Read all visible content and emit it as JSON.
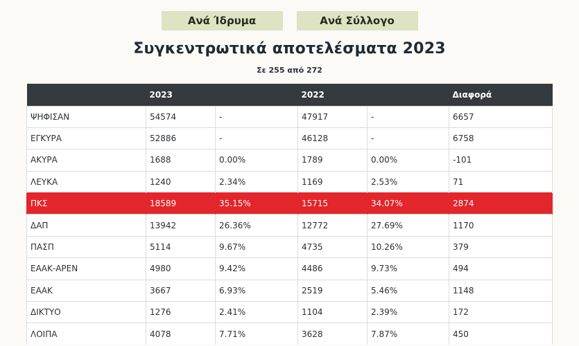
{
  "tabs": [
    {
      "label": "Ανά Ίδρυμα"
    },
    {
      "label": "Ανά Σύλλογο"
    }
  ],
  "title": "Συγκεντρωτικά αποτελέσματα 2023",
  "subtitle": "Σε 255 από 272",
  "table": {
    "headers": [
      "",
      "2023",
      "",
      "2022",
      "",
      "Διαφορά"
    ],
    "rows": [
      {
        "label": "ΨΗΦΙΣΑΝ",
        "v2023": "54574",
        "p2023": "-",
        "v2022": "47917",
        "p2022": "-",
        "diff": "6657"
      },
      {
        "label": "ΕΓΚΥΡΑ",
        "v2023": "52886",
        "p2023": "-",
        "v2022": "46128",
        "p2022": "-",
        "diff": "6758"
      },
      {
        "label": "ΑΚΥΡΑ",
        "v2023": "1688",
        "p2023": "0.00%",
        "v2022": "1789",
        "p2022": "0.00%",
        "diff": "-101"
      },
      {
        "label": "ΛΕΥΚΑ",
        "v2023": "1240",
        "p2023": "2.34%",
        "v2022": "1169",
        "p2022": "2.53%",
        "diff": "71"
      },
      {
        "label": "ΠΚΣ",
        "v2023": "18589",
        "p2023": "35.15%",
        "v2022": "15715",
        "p2022": "34.07%",
        "diff": "2874"
      },
      {
        "label": "ΔΑΠ",
        "v2023": "13942",
        "p2023": "26.36%",
        "v2022": "12772",
        "p2022": "27.69%",
        "diff": "1170"
      },
      {
        "label": "ΠΑΣΠ",
        "v2023": "5114",
        "p2023": "9.67%",
        "v2022": "4735",
        "p2022": "10.26%",
        "diff": "379"
      },
      {
        "label": "ΕΑΑΚ-ΑΡΕΝ",
        "v2023": "4980",
        "p2023": "9.42%",
        "v2022": "4486",
        "p2022": "9.73%",
        "diff": "494"
      },
      {
        "label": "ΕΑΑΚ",
        "v2023": "3667",
        "p2023": "6.93%",
        "v2022": "2519",
        "p2022": "5.46%",
        "diff": "1148"
      },
      {
        "label": "ΔΙΚΤΥΟ",
        "v2023": "1276",
        "p2023": "2.41%",
        "v2022": "1104",
        "p2022": "2.39%",
        "diff": "172"
      },
      {
        "label": "ΛΟΙΠΑ",
        "v2023": "4078",
        "p2023": "7.71%",
        "v2022": "3628",
        "p2022": "7.87%",
        "diff": "450"
      }
    ]
  },
  "colors": {
    "header_bg": "#353a3f",
    "highlight": "#e3262b",
    "tab_bg": "#dde3c3"
  }
}
